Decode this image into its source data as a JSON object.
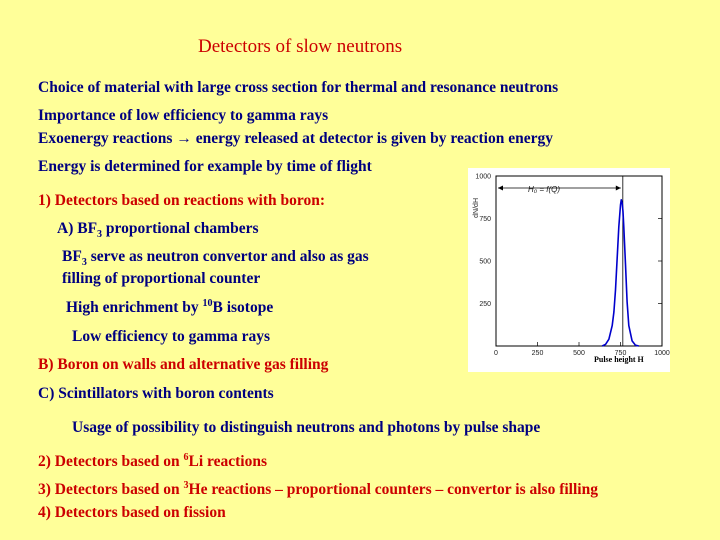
{
  "title": "Detectors of slow neutrons",
  "lines": {
    "l1": "Choice of material with large cross section for thermal and resonance neutrons",
    "l2": "Importance of low efficiency to gamma rays",
    "l3": "Exoenergy reactions → energy released at detector is given by reaction energy",
    "l4": "Energy is determined for example by time of flight",
    "s1": "1) Detectors based on reactions with boron:",
    "a_pre": "A) BF",
    "a_sub": "3",
    "a_post": " proportional chambers",
    "bf_pre": "BF",
    "bf_sub": "3",
    "bf_post": " serve as neutron convertor and also as gas",
    "bf_line2": "filling of proportional counter",
    "he_pre": "High enrichment by ",
    "he_sup": "10",
    "he_post": "B isotope",
    "low": "Low efficiency to gamma rays",
    "b": "B) Boron on walls and alternative gas filling",
    "c": "C) Scintillators with boron contents",
    "usage": "Usage of possibility to distinguish neutrons and photons by pulse shape",
    "s2_pre": "2) Detectors based on ",
    "s2_sup": "6",
    "s2_post": "Li reactions",
    "s3_pre": "3) Detectors based on ",
    "s3_sup": "3",
    "s3_post": "He reactions – proportional counters – convertor is also filling",
    "s4": "4) Detectors based on fission"
  },
  "colors": {
    "background": "#ffff99",
    "text": "#000080",
    "title": "#cc0000",
    "curve": "#0000cc"
  },
  "chart_data": {
    "type": "line",
    "title": "",
    "xlabel": "Pulse height H",
    "ylabel": "dN/dH",
    "annotation": "H₀ = f(Q)",
    "xlim": [
      0,
      1000
    ],
    "ylim": [
      0,
      1000
    ],
    "x_ticks": [
      "0",
      "250",
      "500",
      "750",
      "1000"
    ],
    "y_ticks": [
      "250",
      "500",
      "750",
      "1000"
    ],
    "marker_x": 764,
    "series": [
      {
        "x": [
          640,
          660,
          680,
          700,
          710,
          720,
          730,
          740,
          750,
          755,
          760,
          765,
          770,
          780,
          790,
          800,
          820,
          840,
          860
        ],
        "y": [
          0,
          10,
          40,
          120,
          200,
          330,
          520,
          700,
          830,
          860,
          840,
          790,
          700,
          480,
          260,
          120,
          30,
          5,
          0
        ]
      }
    ]
  }
}
